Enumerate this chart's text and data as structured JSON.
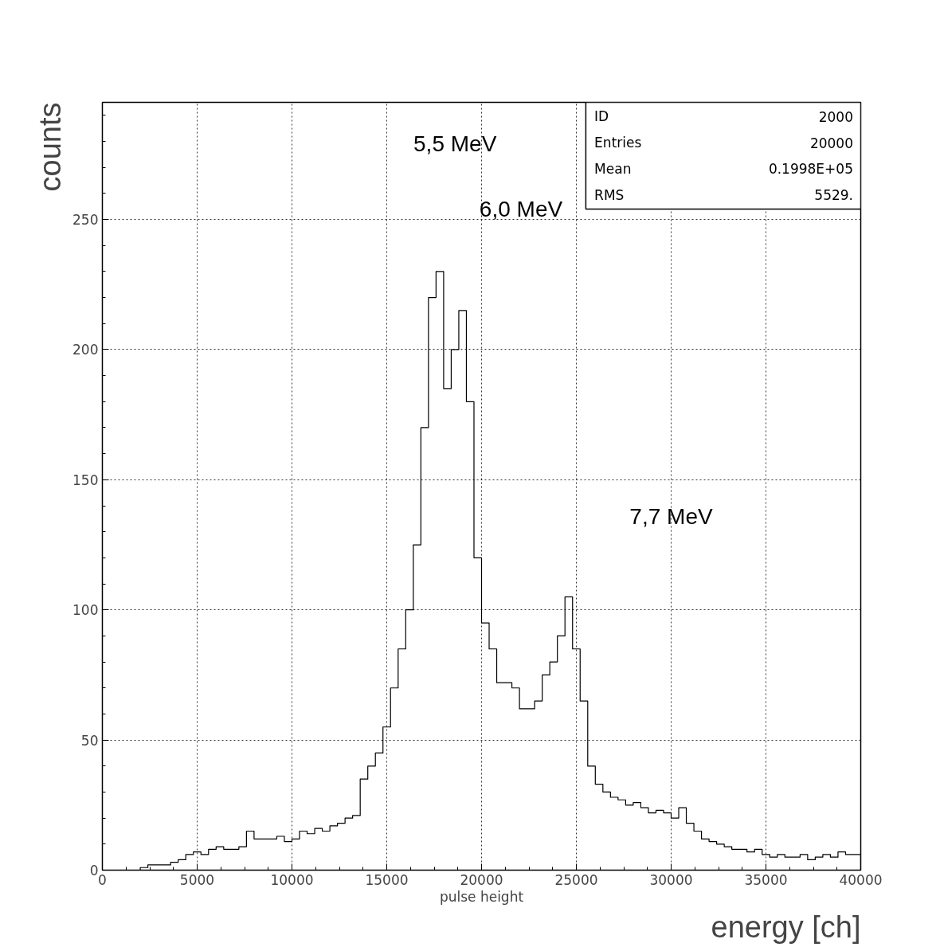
{
  "chart_data": {
    "type": "histogram",
    "title": "pulse height",
    "xlabel": "energy [ch]",
    "ylabel": "counts",
    "bins": [
      0,
      400,
      800,
      1200,
      1600,
      2000,
      2400,
      2800,
      3200,
      3600,
      4000,
      4400,
      4800,
      5200,
      5600,
      6000,
      6400,
      6800,
      7200,
      7600,
      8000,
      8400,
      8800,
      9200,
      9600,
      10000,
      10400,
      10800,
      11200,
      11600,
      12000,
      12400,
      12800,
      13200,
      13600,
      14000,
      14400,
      14800,
      15200,
      15600,
      16000,
      16400,
      16800,
      17200,
      17600,
      18000,
      18400,
      18800,
      19200,
      19600,
      20000,
      20400,
      20800,
      21200,
      21600,
      22000,
      22400,
      22800,
      23200,
      23600,
      24000,
      24400,
      24800,
      25200,
      25600,
      26000,
      26400,
      26800,
      27200,
      27600,
      28000,
      28400,
      28800,
      29200,
      29600,
      30000,
      30400,
      30800,
      31200,
      31600,
      32000,
      32400,
      32800,
      33200,
      33600,
      34000,
      34400,
      34800,
      35200,
      35600,
      36000,
      36400,
      36800,
      37200,
      37600,
      38000,
      38400,
      38800,
      39200,
      39600,
      40000
    ],
    "values": [
      0,
      0,
      0,
      0,
      0,
      1,
      2,
      2,
      2,
      3,
      4,
      6,
      7,
      6,
      8,
      9,
      8,
      8,
      9,
      15,
      12,
      12,
      12,
      13,
      11,
      12,
      15,
      14,
      16,
      15,
      17,
      18,
      20,
      21,
      35,
      40,
      45,
      55,
      70,
      85,
      100,
      125,
      170,
      220,
      230,
      185,
      200,
      215,
      180,
      120,
      95,
      85,
      72,
      72,
      70,
      62,
      62,
      65,
      75,
      80,
      90,
      105,
      85,
      65,
      40,
      33,
      30,
      28,
      27,
      25,
      26,
      24,
      22,
      23,
      22,
      20,
      24,
      18,
      15,
      12,
      11,
      10,
      9,
      8,
      8,
      7,
      8,
      6,
      5,
      6,
      5,
      5,
      6,
      4,
      5,
      6,
      5,
      7,
      6,
      6
    ],
    "color": "#000000",
    "xlim": [
      0,
      40000
    ],
    "xticks": [
      0,
      5000,
      10000,
      15000,
      20000,
      25000,
      30000,
      35000,
      40000
    ],
    "ylim": [
      0,
      295
    ],
    "yticks": [
      0,
      50,
      100,
      150,
      200,
      250
    ],
    "grid": true,
    "annotations": [
      "5,5 MeV",
      "6,0 MeV",
      "7,7 MeV",
      "ID",
      "2000",
      "Entries",
      "20000",
      "Mean",
      "0.1998E+05",
      "RMS",
      "5529."
    ]
  }
}
